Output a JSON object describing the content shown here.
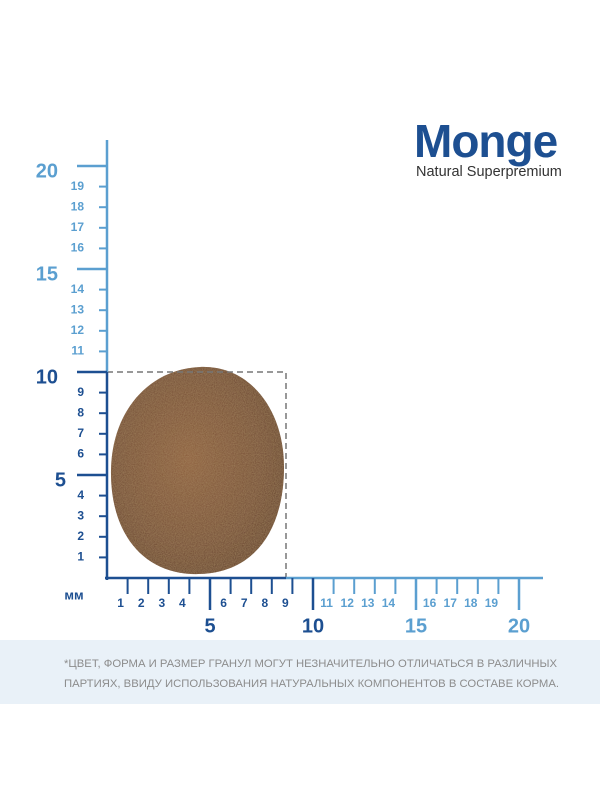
{
  "logo": {
    "brand": "Monge",
    "tagline": "Natural Superpremium"
  },
  "ruler": {
    "unit": "мм",
    "y_labels": [
      1,
      2,
      3,
      4,
      6,
      7,
      8,
      9,
      11,
      12,
      13,
      14,
      16,
      17,
      18,
      19
    ],
    "y_major": [
      5,
      10,
      15,
      20
    ],
    "x_labels": [
      1,
      2,
      3,
      4,
      6,
      7,
      8,
      9,
      11,
      12,
      13,
      14,
      16,
      17,
      18,
      19
    ],
    "x_major": [
      5,
      10,
      15,
      20
    ]
  },
  "footnote": "*Цвет, форма и размер гранул могут незначительно отличаться в различных партиях, ввиду использования натуральных компонентов в составе корма."
}
